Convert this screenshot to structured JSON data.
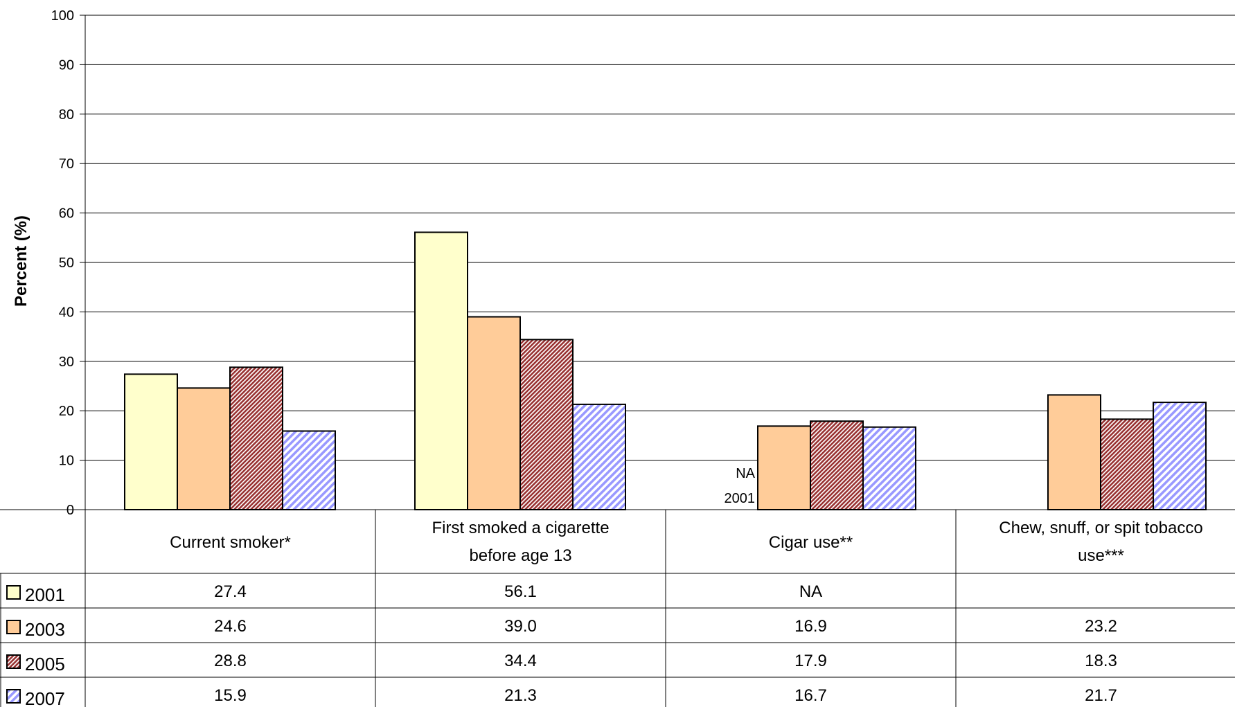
{
  "chart_data": {
    "type": "bar",
    "ylabel": "Percent (%)",
    "ylim": [
      0,
      100
    ],
    "yticks": [
      0,
      10,
      20,
      30,
      40,
      50,
      60,
      70,
      80,
      90,
      100
    ],
    "grid": true,
    "categories": [
      [
        "Current smoker*"
      ],
      [
        "First smoked a cigarette",
        "before age 13"
      ],
      [
        "Cigar use**"
      ],
      [
        "Chew, snuff, or spit tobacco",
        "use***"
      ]
    ],
    "series": [
      {
        "name": "2001",
        "values": [
          27.4,
          56.1,
          null,
          null
        ],
        "labels": [
          "27.4",
          "56.1",
          "NA",
          ""
        ],
        "fill": "#FFFFCC",
        "pattern": "solid"
      },
      {
        "name": "2003",
        "values": [
          24.6,
          39.0,
          16.9,
          23.2
        ],
        "labels": [
          "24.6",
          "39.0",
          "16.9",
          "23.2"
        ],
        "fill": "#FFCC99",
        "pattern": "solid"
      },
      {
        "name": "2005",
        "values": [
          28.8,
          34.4,
          17.9,
          18.3
        ],
        "labels": [
          "28.8",
          "34.4",
          "17.9",
          "18.3"
        ],
        "fill": "#993333",
        "pattern": "dense-diagonal"
      },
      {
        "name": "2007",
        "values": [
          15.9,
          21.3,
          16.7,
          21.7
        ],
        "labels": [
          "15.9",
          "21.3",
          "16.7",
          "21.7"
        ],
        "fill": "#9999FF",
        "pattern": "wide-diagonal"
      }
    ],
    "annotations": [
      {
        "category_index": 2,
        "lines": [
          "NA",
          "2001"
        ]
      }
    ],
    "data_table": true
  }
}
